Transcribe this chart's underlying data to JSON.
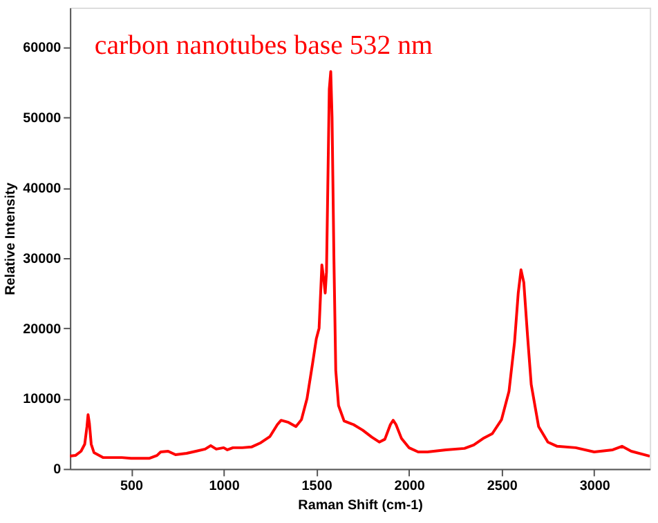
{
  "chart_data": {
    "type": "line",
    "title": "carbon nanotubes base 532 nm",
    "xlabel": "Raman Shift (cm-1)",
    "ylabel": "Relative Intensity",
    "xlim": [
      170,
      3300
    ],
    "ylim": [
      0,
      65600
    ],
    "xticks": [
      500,
      1000,
      1500,
      2000,
      2500,
      3000
    ],
    "yticks": [
      0,
      10000,
      20000,
      30000,
      40000,
      50000,
      60000
    ],
    "grid": false,
    "marker": "none",
    "line_style": "solid",
    "series": [
      {
        "color": "#ff0000",
        "x": [
          170,
          200,
          230,
          250,
          262,
          268,
          275,
          285,
          300,
          350,
          450,
          500,
          600,
          640,
          660,
          700,
          740,
          800,
          850,
          900,
          930,
          960,
          1000,
          1020,
          1050,
          1100,
          1150,
          1200,
          1250,
          1290,
          1310,
          1350,
          1390,
          1420,
          1450,
          1480,
          1500,
          1515,
          1525,
          1530,
          1540,
          1548,
          1555,
          1562,
          1570,
          1578,
          1585,
          1595,
          1605,
          1620,
          1650,
          1700,
          1750,
          1800,
          1840,
          1870,
          1900,
          1915,
          1930,
          1960,
          2000,
          2050,
          2100,
          2200,
          2300,
          2350,
          2400,
          2450,
          2500,
          2540,
          2570,
          2590,
          2605,
          2620,
          2640,
          2660,
          2700,
          2750,
          2800,
          2900,
          3000,
          3100,
          3150,
          3200,
          3300
        ],
        "values": [
          1800,
          1900,
          2500,
          3500,
          6000,
          7700,
          6500,
          3500,
          2300,
          1600,
          1600,
          1500,
          1500,
          1900,
          2400,
          2500,
          2000,
          2200,
          2500,
          2800,
          3300,
          2800,
          3000,
          2700,
          3000,
          3000,
          3100,
          3700,
          4600,
          6300,
          6900,
          6600,
          6000,
          7000,
          10000,
          15000,
          18500,
          20000,
          26000,
          29000,
          27000,
          25000,
          28000,
          40000,
          54000,
          56500,
          50000,
          30000,
          14000,
          9000,
          6800,
          6300,
          5500,
          4500,
          3800,
          4200,
          6300,
          6900,
          6300,
          4300,
          3000,
          2400,
          2400,
          2700,
          2900,
          3400,
          4300,
          5000,
          7000,
          11000,
          18000,
          25000,
          28300,
          26500,
          19000,
          12000,
          6000,
          3800,
          3200,
          3000,
          2400,
          2700,
          3200,
          2500,
          1800
        ]
      }
    ]
  }
}
